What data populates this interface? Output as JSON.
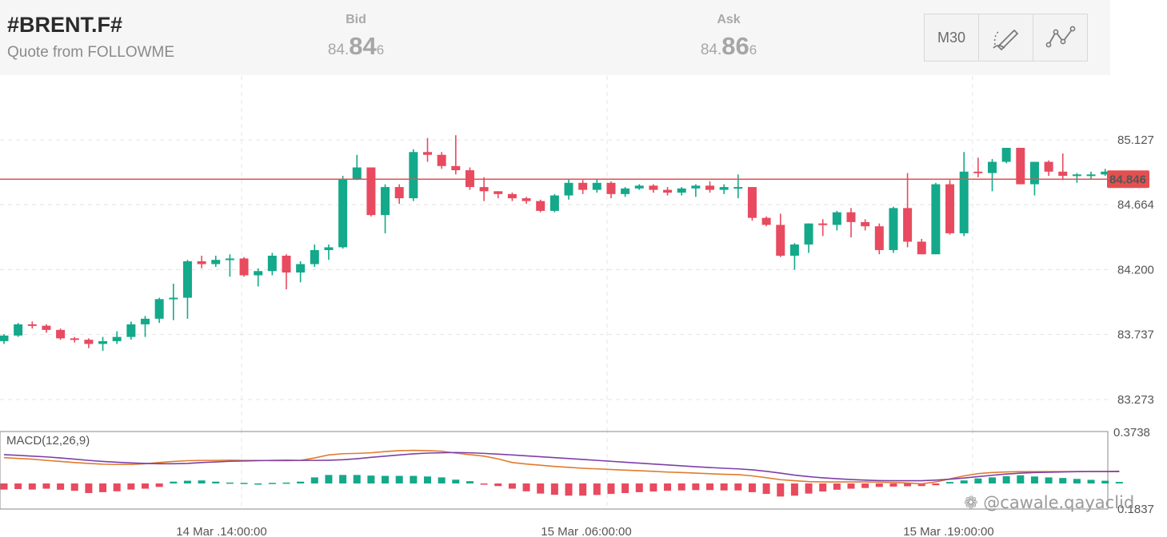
{
  "header": {
    "symbol": "#BRENT.F#",
    "subtitle": "Quote from FOLLOWME",
    "bid": {
      "label": "Bid",
      "pre": "84.",
      "big": "84",
      "post": "6"
    },
    "ask": {
      "label": "Ask",
      "pre": "84.",
      "big": "86",
      "post": "6"
    },
    "toolbar": {
      "timeframe": "M30",
      "draw_icon": "pen-icon",
      "indicator_icon": "line-chart-icon"
    }
  },
  "colors": {
    "up": "#13a98a",
    "down": "#e84a5f",
    "macd": "#7d3fa8",
    "signal": "#e07b2e",
    "price_line": "#e35050"
  },
  "watermark": "❁ @cawale.qayaclid",
  "chart_data": {
    "type": "candlestick",
    "ylim": [
      83.273,
      85.127
    ],
    "yticks": [
      "85.127",
      "84.664",
      "84.200",
      "83.737",
      "83.273"
    ],
    "current_price": "84.846",
    "xticks": [
      "14 Mar .14:00:00",
      "15 Mar .06:00:00",
      "15 Mar .19:00:00"
    ],
    "candles": [
      [
        83.69,
        83.73,
        83.67,
        83.74
      ],
      [
        83.73,
        83.81,
        83.72,
        83.82
      ],
      [
        83.81,
        83.8,
        83.78,
        83.83
      ],
      [
        83.8,
        83.77,
        83.75,
        83.81
      ],
      [
        83.77,
        83.71,
        83.7,
        83.78
      ],
      [
        83.71,
        83.7,
        83.68,
        83.72
      ],
      [
        83.7,
        83.67,
        83.64,
        83.71
      ],
      [
        83.67,
        83.69,
        83.62,
        83.72
      ],
      [
        83.69,
        83.72,
        83.67,
        83.76
      ],
      [
        83.72,
        83.81,
        83.7,
        83.83
      ],
      [
        83.81,
        83.85,
        83.72,
        83.87
      ],
      [
        83.85,
        83.99,
        83.82,
        84.0
      ],
      [
        83.99,
        84.0,
        83.84,
        84.1
      ],
      [
        84.0,
        84.26,
        83.85,
        84.27
      ],
      [
        84.26,
        84.24,
        84.21,
        84.3
      ],
      [
        84.24,
        84.27,
        84.22,
        84.3
      ],
      [
        84.27,
        84.28,
        84.15,
        84.31
      ],
      [
        84.28,
        84.16,
        84.15,
        84.29
      ],
      [
        84.16,
        84.19,
        84.08,
        84.21
      ],
      [
        84.19,
        84.3,
        84.16,
        84.32
      ],
      [
        84.3,
        84.18,
        84.06,
        84.31
      ],
      [
        84.18,
        84.24,
        84.11,
        84.26
      ],
      [
        84.24,
        84.34,
        84.22,
        84.38
      ],
      [
        84.34,
        84.36,
        84.27,
        84.38
      ],
      [
        84.36,
        84.85,
        84.35,
        84.87
      ],
      [
        84.85,
        84.93,
        84.84,
        85.02
      ],
      [
        84.93,
        84.59,
        84.58,
        84.93
      ],
      [
        84.59,
        84.79,
        84.46,
        84.81
      ],
      [
        84.79,
        84.71,
        84.67,
        84.81
      ],
      [
        84.71,
        85.04,
        84.69,
        85.06
      ],
      [
        85.04,
        85.02,
        84.97,
        85.14
      ],
      [
        85.02,
        84.94,
        84.92,
        85.04
      ],
      [
        84.94,
        84.91,
        84.88,
        85.16
      ],
      [
        84.91,
        84.79,
        84.77,
        84.93
      ],
      [
        84.79,
        84.76,
        84.69,
        84.86
      ],
      [
        84.76,
        84.74,
        84.71,
        84.76
      ],
      [
        84.74,
        84.71,
        84.69,
        84.75
      ],
      [
        84.71,
        84.69,
        84.67,
        84.72
      ],
      [
        84.69,
        84.62,
        84.61,
        84.7
      ],
      [
        84.62,
        84.73,
        84.61,
        84.74
      ],
      [
        84.73,
        84.82,
        84.7,
        84.85
      ],
      [
        84.82,
        84.77,
        84.74,
        84.84
      ],
      [
        84.77,
        84.82,
        84.75,
        84.85
      ],
      [
        84.82,
        84.74,
        84.71,
        84.83
      ],
      [
        84.74,
        84.78,
        84.72,
        84.79
      ],
      [
        84.78,
        84.8,
        84.77,
        84.81
      ],
      [
        84.8,
        84.77,
        84.75,
        84.81
      ],
      [
        84.77,
        84.75,
        84.73,
        84.79
      ],
      [
        84.75,
        84.78,
        84.73,
        84.79
      ],
      [
        84.78,
        84.8,
        84.72,
        84.81
      ],
      [
        84.8,
        84.77,
        84.75,
        84.83
      ],
      [
        84.77,
        84.79,
        84.74,
        84.81
      ],
      [
        84.79,
        84.79,
        84.71,
        84.88
      ],
      [
        84.79,
        84.57,
        84.55,
        84.79
      ],
      [
        84.57,
        84.52,
        84.51,
        84.58
      ],
      [
        84.52,
        84.3,
        84.29,
        84.6
      ],
      [
        84.3,
        84.38,
        84.2,
        84.39
      ],
      [
        84.38,
        84.53,
        84.32,
        84.53
      ],
      [
        84.53,
        84.52,
        84.44,
        84.56
      ],
      [
        84.52,
        84.61,
        84.48,
        84.62
      ],
      [
        84.61,
        84.54,
        84.43,
        84.64
      ],
      [
        84.54,
        84.51,
        84.48,
        84.56
      ],
      [
        84.51,
        84.34,
        84.31,
        84.53
      ],
      [
        84.34,
        84.64,
        84.32,
        84.65
      ],
      [
        84.64,
        84.4,
        84.36,
        84.89
      ],
      [
        84.4,
        84.31,
        84.31,
        84.42
      ],
      [
        84.31,
        84.81,
        84.31,
        84.82
      ],
      [
        84.81,
        84.46,
        84.45,
        84.84
      ],
      [
        84.46,
        84.9,
        84.44,
        85.04
      ],
      [
        84.9,
        84.89,
        84.86,
        85.0
      ],
      [
        84.89,
        84.97,
        84.76,
        84.99
      ],
      [
        84.97,
        85.07,
        84.96,
        85.07
      ],
      [
        85.07,
        84.81,
        84.81,
        85.07
      ],
      [
        84.81,
        84.97,
        84.73,
        84.97
      ],
      [
        84.97,
        84.9,
        84.87,
        84.98
      ],
      [
        84.9,
        84.87,
        84.84,
        85.03
      ],
      [
        84.87,
        84.88,
        84.82,
        84.89
      ],
      [
        84.88,
        84.88,
        84.85,
        84.9
      ],
      [
        84.88,
        84.9,
        84.87,
        84.92
      ],
      [
        84.9,
        84.85,
        84.84,
        84.9
      ]
    ],
    "macd": {
      "label": "MACD(12,26,9)",
      "ylim": [
        -0.1837,
        0.3738
      ],
      "yticks": [
        "0.3738",
        "0.1837"
      ],
      "macd_line": [
        0.19,
        0.185,
        0.18,
        0.175,
        0.168,
        0.16,
        0.152,
        0.145,
        0.14,
        0.135,
        0.132,
        0.13,
        0.13,
        0.132,
        0.138,
        0.142,
        0.146,
        0.148,
        0.15,
        0.152,
        0.153,
        0.152,
        0.152,
        0.153,
        0.156,
        0.163,
        0.172,
        0.18,
        0.188,
        0.195,
        0.2,
        0.202,
        0.204,
        0.202,
        0.198,
        0.193,
        0.188,
        0.182,
        0.176,
        0.17,
        0.164,
        0.158,
        0.152,
        0.146,
        0.14,
        0.134,
        0.128,
        0.122,
        0.116,
        0.11,
        0.105,
        0.1,
        0.096,
        0.09,
        0.08,
        0.068,
        0.055,
        0.045,
        0.037,
        0.031,
        0.026,
        0.022,
        0.019,
        0.018,
        0.018,
        0.018,
        0.022,
        0.028,
        0.036,
        0.045,
        0.054,
        0.062,
        0.068,
        0.072,
        0.074,
        0.076,
        0.078,
        0.079,
        0.079,
        0.08
      ],
      "signal_line": [
        0.17,
        0.165,
        0.16,
        0.152,
        0.145,
        0.138,
        0.132,
        0.127,
        0.125,
        0.125,
        0.13,
        0.138,
        0.145,
        0.15,
        0.152,
        0.152,
        0.153,
        0.152,
        0.152,
        0.15,
        0.15,
        0.152,
        0.168,
        0.188,
        0.196,
        0.198,
        0.202,
        0.21,
        0.216,
        0.218,
        0.216,
        0.212,
        0.2,
        0.19,
        0.18,
        0.162,
        0.138,
        0.128,
        0.12,
        0.112,
        0.106,
        0.1,
        0.096,
        0.092,
        0.088,
        0.084,
        0.08,
        0.075,
        0.072,
        0.068,
        0.064,
        0.06,
        0.058,
        0.05,
        0.038,
        0.025,
        0.018,
        0.012,
        0.01,
        0.01,
        0.01,
        0.01,
        0.008,
        0.006,
        0.003,
        -0.002,
        0.01,
        0.03,
        0.05,
        0.065,
        0.072,
        0.076,
        0.078,
        0.078,
        0.078,
        0.078,
        0.078,
        0.078,
        0.078,
        0.078
      ],
      "histogram": [
        -0.035,
        -0.032,
        -0.035,
        -0.03,
        -0.036,
        -0.042,
        -0.055,
        -0.05,
        -0.045,
        -0.035,
        -0.03,
        -0.02,
        0.012,
        0.018,
        0.02,
        0.012,
        0.006,
        0.004,
        0,
        0.004,
        0.006,
        0.012,
        0.04,
        0.056,
        0.056,
        0.056,
        0.052,
        0.05,
        0.05,
        0.05,
        0.046,
        0.04,
        0.025,
        0.015,
        -0.005,
        -0.015,
        -0.03,
        -0.045,
        -0.058,
        -0.065,
        -0.07,
        -0.07,
        -0.066,
        -0.06,
        -0.055,
        -0.05,
        -0.046,
        -0.042,
        -0.04,
        -0.038,
        -0.038,
        -0.04,
        -0.04,
        -0.05,
        -0.06,
        -0.075,
        -0.07,
        -0.058,
        -0.046,
        -0.036,
        -0.03,
        -0.026,
        -0.02,
        -0.018,
        -0.016,
        -0.015,
        -0.01,
        0.01,
        0.02,
        0.033,
        0.04,
        0.048,
        0.054,
        0.046,
        0.04,
        0.036,
        0.03,
        0.024,
        0.018,
        0.01
      ]
    }
  }
}
